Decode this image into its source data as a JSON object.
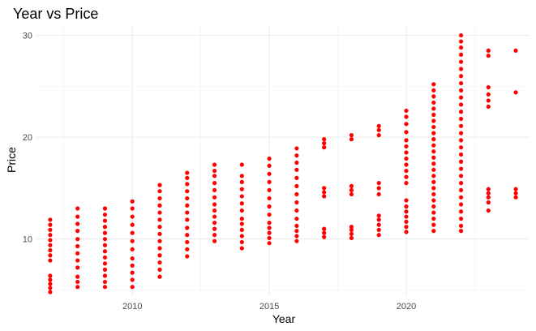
{
  "chart_data": {
    "type": "scatter",
    "title": "Year vs Price",
    "xlabel": "Year",
    "ylabel": "Price",
    "xlim": [
      2006.5,
      2024.5
    ],
    "ylim": [
      4.4,
      31
    ],
    "x_ticks": [
      2010,
      2015,
      2020
    ],
    "y_ticks": [
      10,
      20,
      30
    ],
    "x_tick_labels": [
      "2010",
      "2015",
      "2020"
    ],
    "y_tick_labels": [
      "10",
      "20",
      "30"
    ],
    "grid": true,
    "legend": "none",
    "point_color": "#ff0000",
    "series": [
      {
        "points": [
          [
            2007,
            4.8
          ],
          [
            2007,
            5.2
          ],
          [
            2007,
            5.6
          ],
          [
            2007,
            6.0
          ],
          [
            2007,
            6.4
          ],
          [
            2007,
            7.9
          ],
          [
            2007,
            8.4
          ],
          [
            2007,
            8.9
          ],
          [
            2007,
            9.4
          ],
          [
            2007,
            9.9
          ],
          [
            2007,
            10.4
          ],
          [
            2007,
            10.9
          ],
          [
            2007,
            11.4
          ],
          [
            2007,
            11.9
          ],
          [
            2008,
            5.3
          ],
          [
            2008,
            5.8
          ],
          [
            2008,
            6.3
          ],
          [
            2008,
            7.2
          ],
          [
            2008,
            7.9
          ],
          [
            2008,
            8.6
          ],
          [
            2008,
            9.3
          ],
          [
            2008,
            10.0
          ],
          [
            2008,
            10.8
          ],
          [
            2008,
            11.5
          ],
          [
            2008,
            12.2
          ],
          [
            2008,
            13.0
          ],
          [
            2009,
            5.3
          ],
          [
            2009,
            5.8
          ],
          [
            2009,
            6.4
          ],
          [
            2009,
            7.0
          ],
          [
            2009,
            7.6
          ],
          [
            2009,
            8.2
          ],
          [
            2009,
            8.8
          ],
          [
            2009,
            9.4
          ],
          [
            2009,
            10.0
          ],
          [
            2009,
            10.6
          ],
          [
            2009,
            11.2
          ],
          [
            2009,
            11.8
          ],
          [
            2009,
            12.4
          ],
          [
            2009,
            13.0
          ],
          [
            2010,
            5.3
          ],
          [
            2010,
            6.0
          ],
          [
            2010,
            6.7
          ],
          [
            2010,
            7.4
          ],
          [
            2010,
            8.1
          ],
          [
            2010,
            9.0
          ],
          [
            2010,
            9.8
          ],
          [
            2010,
            10.6
          ],
          [
            2010,
            11.4
          ],
          [
            2010,
            12.2
          ],
          [
            2010,
            13.0
          ],
          [
            2010,
            13.7
          ],
          [
            2011,
            6.3
          ],
          [
            2011,
            7.0
          ],
          [
            2011,
            7.7
          ],
          [
            2011,
            8.4
          ],
          [
            2011,
            9.1
          ],
          [
            2011,
            9.8
          ],
          [
            2011,
            10.5
          ],
          [
            2011,
            11.2
          ],
          [
            2011,
            11.9
          ],
          [
            2011,
            12.6
          ],
          [
            2011,
            13.3
          ],
          [
            2011,
            14.0
          ],
          [
            2011,
            14.7
          ],
          [
            2011,
            15.3
          ],
          [
            2012,
            8.3
          ],
          [
            2012,
            9.0
          ],
          [
            2012,
            9.7
          ],
          [
            2012,
            10.4
          ],
          [
            2012,
            11.1
          ],
          [
            2012,
            11.9
          ],
          [
            2012,
            12.6
          ],
          [
            2012,
            13.3
          ],
          [
            2012,
            14.0
          ],
          [
            2012,
            14.7
          ],
          [
            2012,
            15.4
          ],
          [
            2012,
            16.0
          ],
          [
            2012,
            16.5
          ],
          [
            2013,
            9.8
          ],
          [
            2013,
            10.4
          ],
          [
            2013,
            11.0
          ],
          [
            2013,
            11.6
          ],
          [
            2013,
            12.2
          ],
          [
            2013,
            12.8
          ],
          [
            2013,
            13.4
          ],
          [
            2013,
            14.1
          ],
          [
            2013,
            14.8
          ],
          [
            2013,
            15.5
          ],
          [
            2013,
            16.2
          ],
          [
            2013,
            16.7
          ],
          [
            2013,
            17.3
          ],
          [
            2014,
            9.1
          ],
          [
            2014,
            9.7
          ],
          [
            2014,
            10.3
          ],
          [
            2014,
            10.9
          ],
          [
            2014,
            11.5
          ],
          [
            2014,
            12.0
          ],
          [
            2014,
            12.8
          ],
          [
            2014,
            13.5
          ],
          [
            2014,
            14.2
          ],
          [
            2014,
            14.9
          ],
          [
            2014,
            15.6
          ],
          [
            2014,
            16.2
          ],
          [
            2014,
            17.3
          ],
          [
            2015,
            9.6
          ],
          [
            2015,
            10.1
          ],
          [
            2015,
            10.6
          ],
          [
            2015,
            11.1
          ],
          [
            2015,
            11.6
          ],
          [
            2015,
            12.4
          ],
          [
            2015,
            13.2
          ],
          [
            2015,
            14.0
          ],
          [
            2015,
            14.8
          ],
          [
            2015,
            15.6
          ],
          [
            2015,
            16.4
          ],
          [
            2015,
            17.2
          ],
          [
            2015,
            17.9
          ],
          [
            2016,
            9.8
          ],
          [
            2016,
            10.3
          ],
          [
            2016,
            10.8
          ],
          [
            2016,
            11.3
          ],
          [
            2016,
            12.0
          ],
          [
            2016,
            12.8
          ],
          [
            2016,
            13.6
          ],
          [
            2016,
            14.4
          ],
          [
            2016,
            15.2
          ],
          [
            2016,
            16.0
          ],
          [
            2016,
            16.8
          ],
          [
            2016,
            17.5
          ],
          [
            2016,
            18.2
          ],
          [
            2016,
            18.9
          ],
          [
            2017,
            10.2
          ],
          [
            2017,
            10.6
          ],
          [
            2017,
            11.0
          ],
          [
            2017,
            14.2
          ],
          [
            2017,
            14.6
          ],
          [
            2017,
            15.0
          ],
          [
            2017,
            19.0
          ],
          [
            2017,
            19.4
          ],
          [
            2017,
            19.8
          ],
          [
            2018,
            10.1
          ],
          [
            2018,
            10.5
          ],
          [
            2018,
            10.9
          ],
          [
            2018,
            11.2
          ],
          [
            2018,
            14.4
          ],
          [
            2018,
            14.8
          ],
          [
            2018,
            15.2
          ],
          [
            2018,
            19.8
          ],
          [
            2018,
            20.2
          ],
          [
            2019,
            10.4
          ],
          [
            2019,
            10.9
          ],
          [
            2019,
            11.4
          ],
          [
            2019,
            11.9
          ],
          [
            2019,
            12.3
          ],
          [
            2019,
            14.4
          ],
          [
            2019,
            15.0
          ],
          [
            2019,
            15.5
          ],
          [
            2019,
            20.2
          ],
          [
            2019,
            20.7
          ],
          [
            2019,
            21.1
          ],
          [
            2020,
            10.7
          ],
          [
            2020,
            11.2
          ],
          [
            2020,
            11.7
          ],
          [
            2020,
            12.2
          ],
          [
            2020,
            12.7
          ],
          [
            2020,
            13.2
          ],
          [
            2020,
            13.8
          ],
          [
            2020,
            15.5
          ],
          [
            2020,
            16.1
          ],
          [
            2020,
            16.7
          ],
          [
            2020,
            17.3
          ],
          [
            2020,
            17.9
          ],
          [
            2020,
            18.5
          ],
          [
            2020,
            19.1
          ],
          [
            2020,
            19.7
          ],
          [
            2020,
            20.5
          ],
          [
            2020,
            21.3
          ],
          [
            2020,
            22.0
          ],
          [
            2020,
            22.6
          ],
          [
            2021,
            10.8
          ],
          [
            2021,
            11.4
          ],
          [
            2021,
            12.0
          ],
          [
            2021,
            12.6
          ],
          [
            2021,
            13.2
          ],
          [
            2021,
            13.8
          ],
          [
            2021,
            14.4
          ],
          [
            2021,
            15.0
          ],
          [
            2021,
            15.6
          ],
          [
            2021,
            16.2
          ],
          [
            2021,
            16.8
          ],
          [
            2021,
            17.4
          ],
          [
            2021,
            18.0
          ],
          [
            2021,
            18.6
          ],
          [
            2021,
            19.2
          ],
          [
            2021,
            19.8
          ],
          [
            2021,
            20.4
          ],
          [
            2021,
            21.0
          ],
          [
            2021,
            21.6
          ],
          [
            2021,
            22.2
          ],
          [
            2021,
            22.8
          ],
          [
            2021,
            23.4
          ],
          [
            2021,
            24.0
          ],
          [
            2021,
            24.6
          ],
          [
            2021,
            25.2
          ],
          [
            2022,
            10.8
          ],
          [
            2022,
            11.3
          ],
          [
            2022,
            12.0
          ],
          [
            2022,
            12.7
          ],
          [
            2022,
            13.4
          ],
          [
            2022,
            14.1
          ],
          [
            2022,
            14.8
          ],
          [
            2022,
            15.5
          ],
          [
            2022,
            16.2
          ],
          [
            2022,
            16.9
          ],
          [
            2022,
            17.6
          ],
          [
            2022,
            18.3
          ],
          [
            2022,
            19.0
          ],
          [
            2022,
            19.7
          ],
          [
            2022,
            20.4
          ],
          [
            2022,
            21.1
          ],
          [
            2022,
            21.8
          ],
          [
            2022,
            22.5
          ],
          [
            2022,
            23.2
          ],
          [
            2022,
            23.9
          ],
          [
            2022,
            24.6
          ],
          [
            2022,
            25.3
          ],
          [
            2022,
            26.0
          ],
          [
            2022,
            26.7
          ],
          [
            2022,
            27.4
          ],
          [
            2022,
            28.1
          ],
          [
            2022,
            28.8
          ],
          [
            2022,
            29.4
          ],
          [
            2022,
            30.0
          ],
          [
            2023,
            12.8
          ],
          [
            2023,
            13.6
          ],
          [
            2023,
            14.1
          ],
          [
            2023,
            14.5
          ],
          [
            2023,
            14.9
          ],
          [
            2023,
            23.0
          ],
          [
            2023,
            23.6
          ],
          [
            2023,
            24.2
          ],
          [
            2023,
            24.9
          ],
          [
            2023,
            28.0
          ],
          [
            2023,
            28.5
          ],
          [
            2024,
            14.1
          ],
          [
            2024,
            14.5
          ],
          [
            2024,
            14.9
          ],
          [
            2024,
            24.4
          ],
          [
            2024,
            28.5
          ]
        ]
      }
    ]
  }
}
